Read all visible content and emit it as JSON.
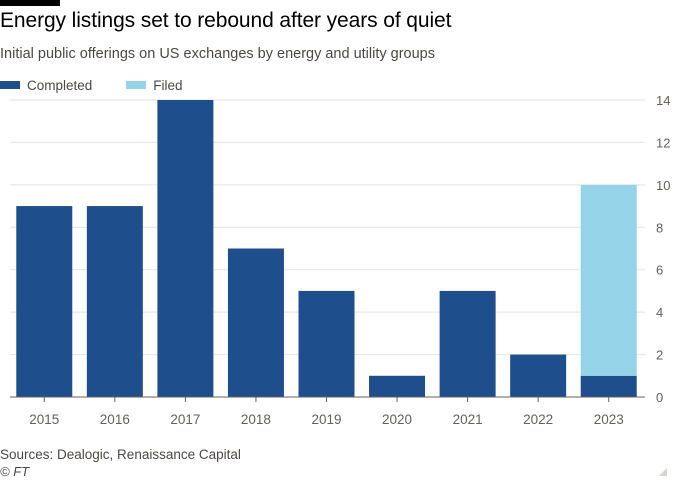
{
  "title": "Energy listings set to rebound after years of quiet",
  "subtitle": "Initial public offerings on US exchanges by energy and utility groups",
  "source": "Sources: Dealogic, Renaissance Capital",
  "credit": "© FT",
  "colors": {
    "completed": "#1f4e8c",
    "filed": "#95d4e8",
    "grid": "#e6e3df",
    "axis": "#66605c"
  },
  "chart_data": {
    "type": "bar",
    "stacked": true,
    "categories": [
      "2015",
      "2016",
      "2017",
      "2018",
      "2019",
      "2020",
      "2021",
      "2022",
      "2023"
    ],
    "series": [
      {
        "name": "Completed",
        "values": [
          9,
          9,
          14,
          7,
          5,
          1,
          5,
          2,
          1
        ]
      },
      {
        "name": "Filed",
        "values": [
          0,
          0,
          0,
          0,
          0,
          0,
          0,
          0,
          9
        ]
      }
    ],
    "ylim": [
      0,
      14
    ],
    "yticks": [
      0,
      2,
      4,
      6,
      8,
      10,
      12,
      14
    ],
    "y_axis_side": "right",
    "grid": true,
    "legend": "top-left"
  }
}
